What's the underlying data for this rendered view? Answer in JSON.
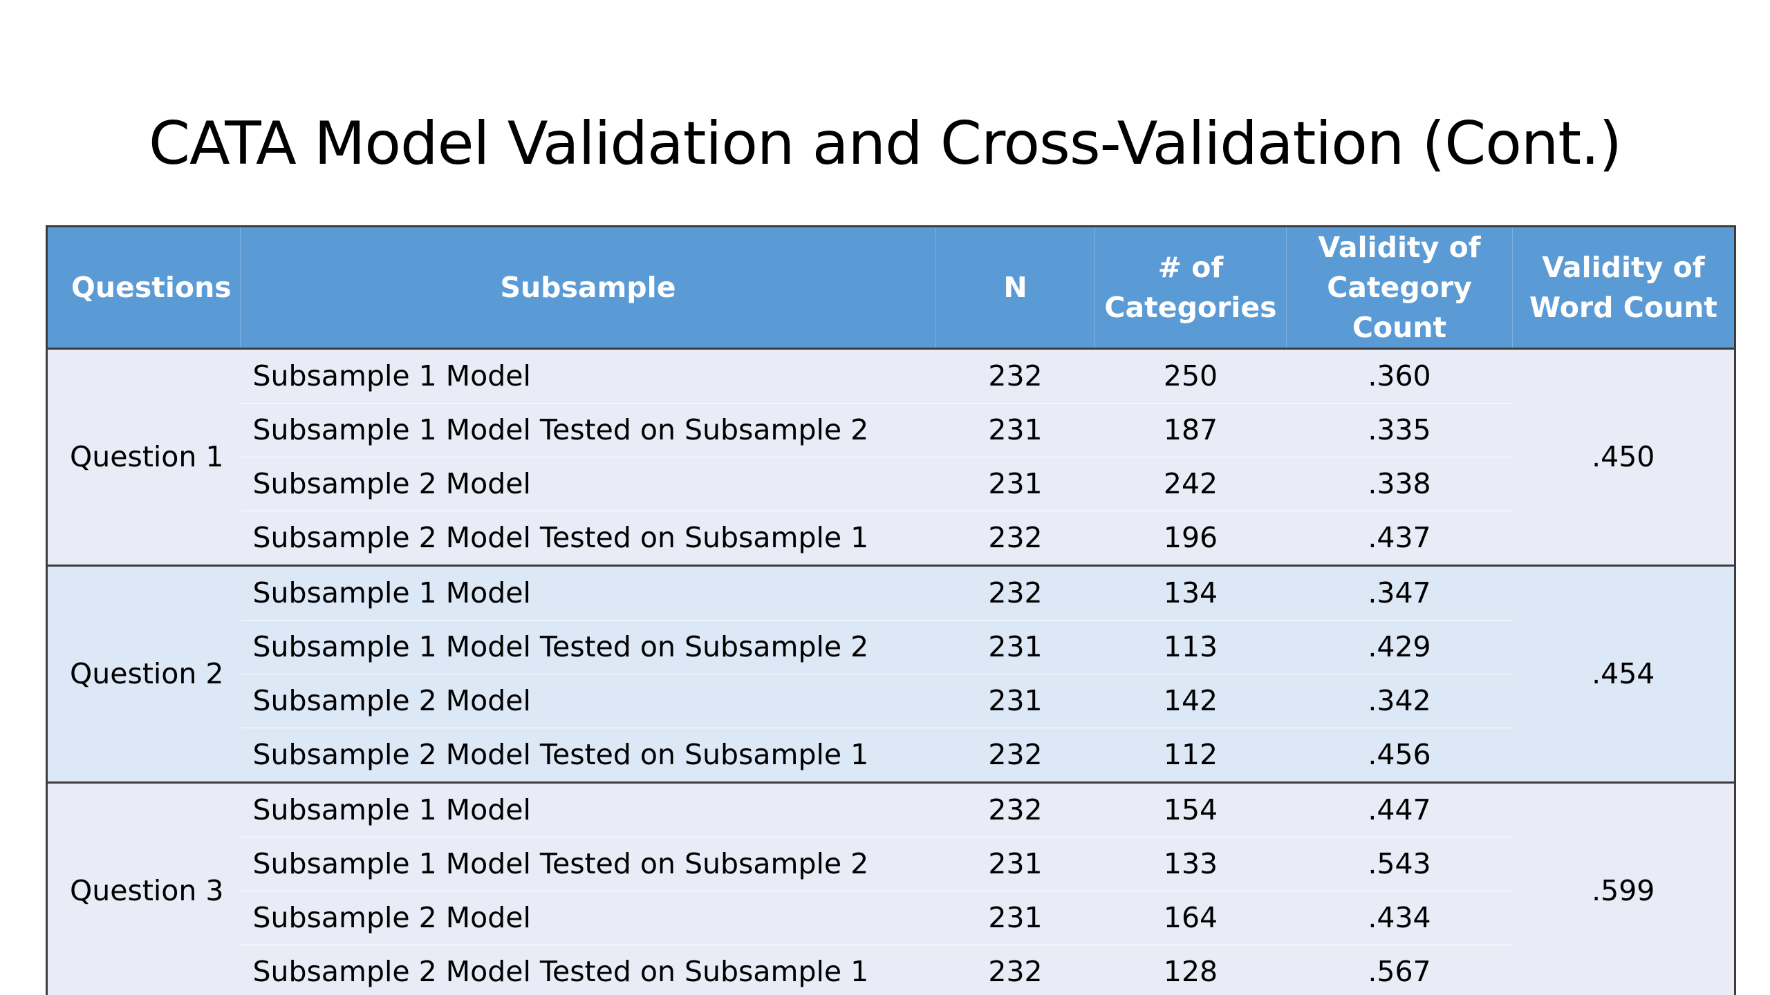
{
  "title": "CATA Model Validation and Cross-Validation (Cont.)",
  "table": {
    "headers": {
      "questions": "Questions",
      "subsample": "Subsample",
      "n": "N",
      "categories_line1": "# of",
      "categories_line2": "Categories",
      "validity_category_line1": "Validity of",
      "validity_category_line2": "Category Count",
      "validity_word_line1": "Validity of",
      "validity_word_line2": "Word Count"
    },
    "groups": [
      {
        "question": "Question 1",
        "word_count_validity": ".450",
        "rows": [
          {
            "subsample": "Subsample 1 Model",
            "n": "232",
            "categories": "250",
            "validity": ".360"
          },
          {
            "subsample": "Subsample 1 Model Tested on Subsample 2",
            "n": "231",
            "categories": "187",
            "validity": ".335"
          },
          {
            "subsample": "Subsample 2 Model",
            "n": "231",
            "categories": "242",
            "validity": ".338"
          },
          {
            "subsample": "Subsample 2 Model Tested on Subsample 1",
            "n": "232",
            "categories": "196",
            "validity": ".437"
          }
        ]
      },
      {
        "question": "Question 2",
        "word_count_validity": ".454",
        "rows": [
          {
            "subsample": "Subsample 1 Model",
            "n": "232",
            "categories": "134",
            "validity": ".347"
          },
          {
            "subsample": "Subsample 1 Model Tested on Subsample 2",
            "n": "231",
            "categories": "113",
            "validity": ".429"
          },
          {
            "subsample": "Subsample 2 Model",
            "n": "231",
            "categories": "142",
            "validity": ".342"
          },
          {
            "subsample": "Subsample 2 Model Tested on Subsample 1",
            "n": "232",
            "categories": "112",
            "validity": ".456"
          }
        ]
      },
      {
        "question": "Question 3",
        "word_count_validity": ".599",
        "rows": [
          {
            "subsample": "Subsample 1 Model",
            "n": "232",
            "categories": "154",
            "validity": ".447"
          },
          {
            "subsample": "Subsample 1 Model Tested on Subsample 2",
            "n": "231",
            "categories": "133",
            "validity": ".543"
          },
          {
            "subsample": "Subsample 2 Model",
            "n": "231",
            "categories": "164",
            "validity": ".434"
          },
          {
            "subsample": "Subsample 2 Model Tested on Subsample 1",
            "n": "232",
            "categories": "128",
            "validity": ".567"
          }
        ]
      }
    ]
  }
}
